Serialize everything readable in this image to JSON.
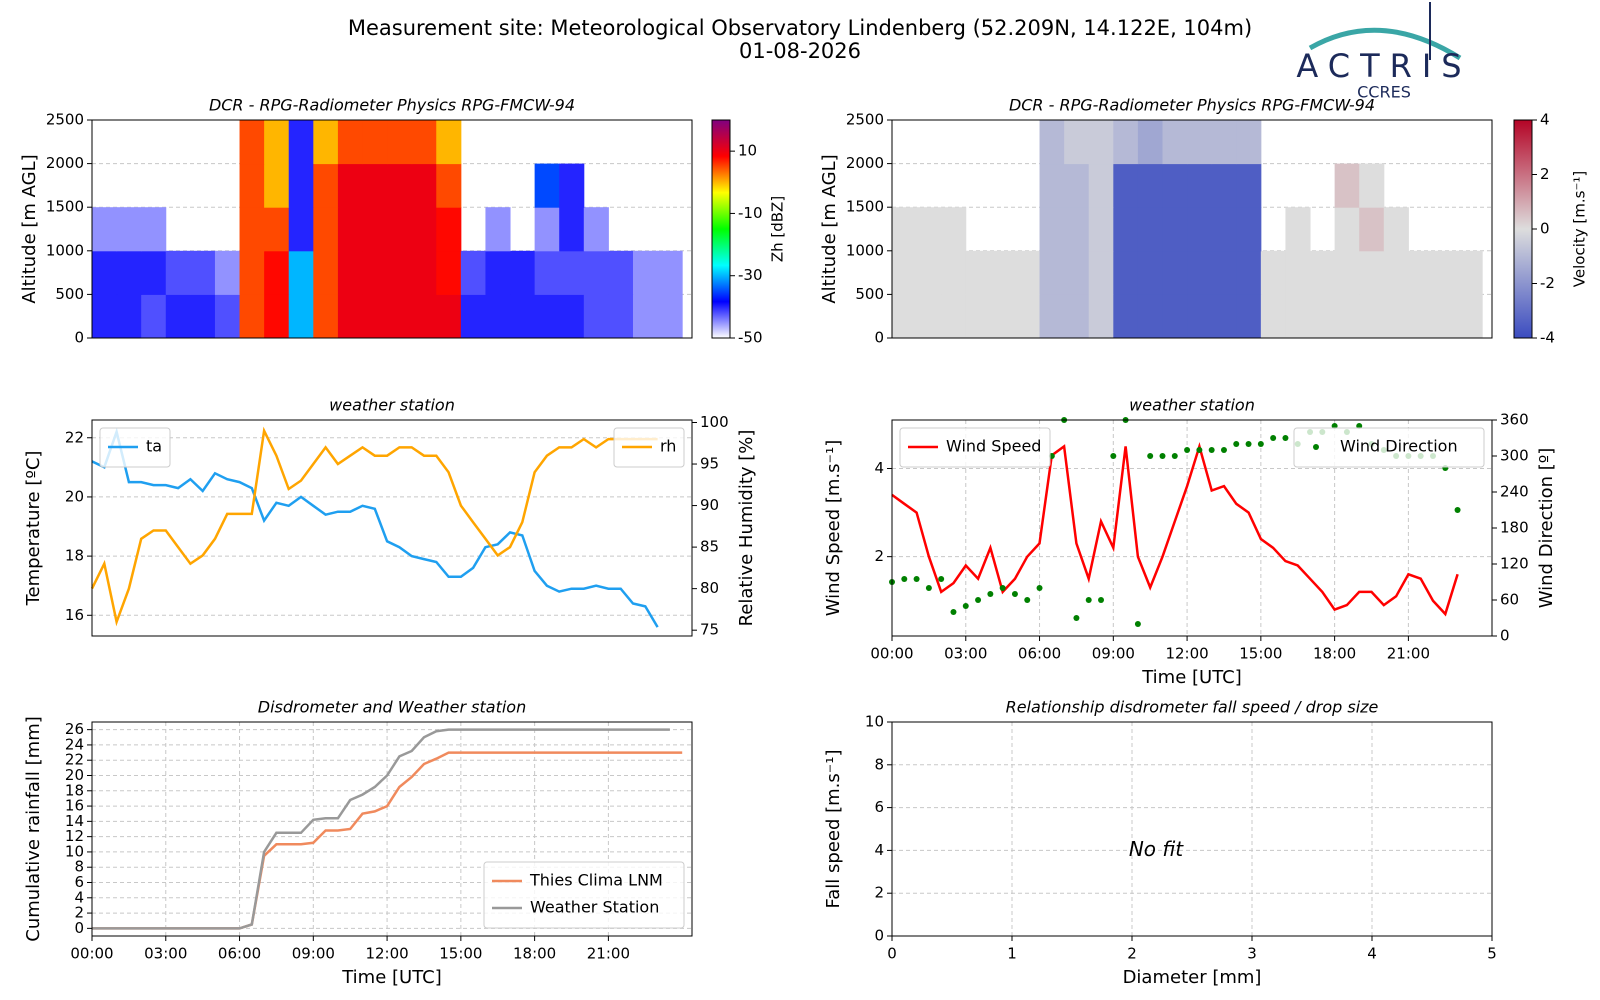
{
  "header": {
    "title": "Measurement site: Meteorological Observatory Lindenberg (52.209N, 14.122E, 104m)",
    "date": "01-08-2026",
    "logo": "ACTRIS",
    "logo_sub": "CCRES"
  },
  "chart_data": [
    {
      "type": "heatmap",
      "title": "DCR - RPG-Radiometer Physics RPG-FMCW-94",
      "ylabel": "Altitude [m AGL]",
      "xlim": [
        0,
        24.4
      ],
      "ylim": [
        0,
        2500
      ],
      "yticks": [
        0,
        500,
        1000,
        1500,
        2000,
        2500
      ],
      "grid": true,
      "x_bins": [
        0,
        1,
        2,
        3,
        4,
        5,
        6,
        7,
        8,
        9,
        10,
        11,
        12,
        13,
        14,
        15,
        16,
        17,
        18,
        19,
        20,
        21,
        22,
        23,
        24
      ],
      "y_bins": [
        0,
        500,
        1000,
        1500,
        2000,
        2500
      ],
      "values": [
        [
          -40,
          -40,
          -42,
          -40,
          -40,
          -42,
          5,
          8,
          -30,
          5,
          10,
          10,
          10,
          10,
          10,
          -40,
          -40,
          -40,
          -40,
          -40,
          -42,
          -42,
          -45,
          -45
        ],
        [
          -40,
          -40,
          -40,
          -42,
          -42,
          -45,
          5,
          8,
          -30,
          5,
          10,
          10,
          10,
          10,
          8,
          -42,
          -40,
          -40,
          -42,
          -42,
          -42,
          -42,
          -45,
          -45
        ],
        [
          -45,
          -45,
          -45,
          null,
          null,
          null,
          5,
          5,
          -40,
          5,
          10,
          10,
          10,
          10,
          8,
          null,
          -45,
          null,
          -45,
          -40,
          -45,
          null,
          null,
          null
        ],
        [
          null,
          null,
          null,
          null,
          null,
          null,
          5,
          0,
          -40,
          5,
          10,
          10,
          10,
          10,
          5,
          null,
          null,
          null,
          -35,
          -40,
          null,
          null,
          null,
          null
        ],
        [
          null,
          null,
          null,
          null,
          null,
          null,
          5,
          0,
          -40,
          0,
          5,
          5,
          5,
          5,
          0,
          null,
          null,
          null,
          null,
          null,
          null,
          null,
          null,
          null
        ]
      ],
      "zlim": [
        -50,
        20
      ],
      "zticks": [
        10,
        -10,
        -30,
        -50
      ],
      "zlabel": "Zh [dBZ]",
      "colorscale": [
        "#ffffff",
        "#0000ff",
        "#00ffff",
        "#00ff00",
        "#ffff00",
        "#ff0000",
        "#800080"
      ]
    },
    {
      "type": "heatmap",
      "title": "DCR - RPG-Radiometer Physics RPG-FMCW-94",
      "ylabel": "Altitude [m AGL]",
      "xlim": [
        0,
        24.4
      ],
      "ylim": [
        0,
        2500
      ],
      "yticks": [
        0,
        500,
        1000,
        1500,
        2000,
        2500
      ],
      "grid": true,
      "x_bins": [
        0,
        1,
        2,
        3,
        4,
        5,
        6,
        7,
        8,
        9,
        10,
        11,
        12,
        13,
        14,
        15,
        16,
        17,
        18,
        19,
        20,
        21,
        22,
        23,
        24
      ],
      "y_bins": [
        0,
        500,
        1000,
        1500,
        2000,
        2500
      ],
      "values": [
        [
          0,
          0,
          0,
          0,
          0,
          0,
          -1,
          -1,
          -0.5,
          -3.5,
          -3.5,
          -3.5,
          -3.5,
          -3.5,
          -3.5,
          0,
          0,
          0,
          0,
          0,
          0,
          0,
          0,
          0
        ],
        [
          0,
          0,
          0,
          0,
          0,
          0,
          -1,
          -1,
          -0.5,
          -3.5,
          -3.5,
          -3.5,
          -3.5,
          -3.5,
          -3.5,
          0,
          0,
          0,
          0,
          0,
          0,
          0,
          0,
          0
        ],
        [
          0,
          0,
          0,
          null,
          null,
          null,
          -1,
          -1,
          -0.5,
          -3.5,
          -3.5,
          -3.5,
          -3.5,
          -3.5,
          -3.5,
          null,
          0,
          null,
          0,
          0.5,
          0,
          null,
          null,
          null
        ],
        [
          null,
          null,
          null,
          null,
          null,
          null,
          -1,
          -1,
          -0.5,
          -3.5,
          -3.5,
          -3.5,
          -3.5,
          -3.5,
          -3.5,
          null,
          null,
          null,
          0.5,
          0,
          null,
          null,
          null,
          null
        ],
        [
          null,
          null,
          null,
          null,
          null,
          null,
          -1,
          -0.5,
          -0.5,
          -1,
          -1.5,
          -1,
          -1,
          -1,
          -1,
          null,
          null,
          null,
          null,
          null,
          null,
          null,
          null,
          null
        ]
      ],
      "zlim": [
        -4,
        4
      ],
      "zticks": [
        4,
        2,
        0,
        -2,
        -4
      ],
      "zlabel": "Velocity [m.s⁻¹]",
      "colorscale": [
        "#3b4cc0",
        "#dddddd",
        "#b40426"
      ]
    },
    {
      "type": "line",
      "title": "weather station",
      "ylabel": "Temperature [ºC]",
      "y2label": "Relative Humidity [%]",
      "xlim": [
        0,
        24.4
      ],
      "ylim": [
        15.3,
        22.6
      ],
      "yticks": [
        16,
        18,
        20,
        22
      ],
      "y2lim": [
        74.3,
        100.3
      ],
      "y2ticks": [
        75,
        80,
        85,
        90,
        95,
        100
      ],
      "grid": true,
      "x": [
        0,
        0.5,
        1,
        1.5,
        2,
        2.5,
        3,
        3.5,
        4,
        4.5,
        5,
        5.5,
        6,
        6.5,
        7,
        7.5,
        8,
        8.5,
        9,
        9.5,
        10,
        10.5,
        11,
        11.5,
        12,
        12.5,
        13,
        13.5,
        14,
        14.5,
        15,
        15.5,
        16,
        16.5,
        17,
        17.5,
        18,
        18.5,
        19,
        19.5,
        20,
        20.5,
        21,
        21.5,
        22,
        22.5,
        23
      ],
      "series": [
        {
          "name": "ta",
          "color": "#1f9ff0",
          "style": "line",
          "legend": "upper left",
          "values": [
            21.2,
            21.0,
            22.2,
            20.5,
            20.5,
            20.4,
            20.4,
            20.3,
            20.6,
            20.2,
            20.8,
            20.6,
            20.5,
            20.3,
            19.2,
            19.8,
            19.7,
            20.0,
            19.7,
            19.4,
            19.5,
            19.5,
            19.7,
            19.6,
            18.5,
            18.3,
            18.0,
            17.9,
            17.8,
            17.3,
            17.3,
            17.6,
            18.3,
            18.4,
            18.8,
            18.7,
            17.5,
            17.0,
            16.8,
            16.9,
            16.9,
            17.0,
            16.9,
            16.9,
            16.4,
            16.3,
            15.6
          ]
        },
        {
          "name": "rh",
          "color": "#ffa500",
          "style": "line",
          "axis": "y2",
          "legend": "upper right",
          "values": [
            80,
            83,
            76,
            80,
            86,
            87,
            87,
            85,
            83,
            84,
            86,
            89,
            89,
            89,
            99,
            96,
            92,
            93,
            95,
            97,
            95,
            96,
            97,
            96,
            96,
            97,
            97,
            96,
            96,
            94,
            90,
            88,
            86,
            84,
            85,
            88,
            94,
            96,
            97,
            97,
            98,
            97,
            98,
            98,
            98,
            98,
            98
          ]
        }
      ]
    },
    {
      "type": "line",
      "title": "weather station",
      "ylabel": "Wind Speed [m.s⁻¹]",
      "y2label": "Wind Direction [º]",
      "xlabel": "Time [UTC]",
      "xlim": [
        0,
        24.4
      ],
      "ylim": [
        0.2,
        5.1
      ],
      "yticks": [
        2,
        4
      ],
      "y2lim": [
        0,
        360
      ],
      "y2ticks": [
        0,
        60,
        120,
        180,
        240,
        300,
        360
      ],
      "grid": true,
      "xticks": [
        {
          "value": 0,
          "label": "00:00"
        },
        {
          "value": 3,
          "label": "03:00"
        },
        {
          "value": 6,
          "label": "06:00"
        },
        {
          "value": 9,
          "label": "09:00"
        },
        {
          "value": 12,
          "label": "12:00"
        },
        {
          "value": 15,
          "label": "15:00"
        },
        {
          "value": 18,
          "label": "18:00"
        },
        {
          "value": 21,
          "label": "21:00"
        }
      ],
      "x": [
        0,
        0.5,
        1,
        1.5,
        2,
        2.5,
        3,
        3.5,
        4,
        4.5,
        5,
        5.5,
        6,
        6.5,
        7,
        7.5,
        8,
        8.5,
        9,
        9.5,
        10,
        10.5,
        11,
        11.5,
        12,
        12.5,
        13,
        13.5,
        14,
        14.5,
        15,
        15.5,
        16,
        16.5,
        17,
        17.5,
        18,
        18.5,
        19,
        19.5,
        20,
        20.5,
        21,
        21.5,
        22,
        22.5,
        23
      ],
      "series": [
        {
          "name": "Wind Speed",
          "color": "#ff0000",
          "style": "line",
          "legend": "upper left",
          "values": [
            3.4,
            3.2,
            3.0,
            2.0,
            1.2,
            1.4,
            1.8,
            1.5,
            2.2,
            1.2,
            1.5,
            2.0,
            2.3,
            4.3,
            4.5,
            2.3,
            1.5,
            2.8,
            2.2,
            4.5,
            2.0,
            1.3,
            2.0,
            2.8,
            3.6,
            4.5,
            3.5,
            3.6,
            3.2,
            3.0,
            2.4,
            2.2,
            1.9,
            1.8,
            1.5,
            1.2,
            0.8,
            0.9,
            1.2,
            1.2,
            0.9,
            1.1,
            1.6,
            1.5,
            1.0,
            0.7,
            1.6
          ]
        },
        {
          "name": "Wind Direction",
          "color": "#008000",
          "style": "points",
          "axis": "y2",
          "legend": "upper right",
          "values": [
            90,
            95,
            95,
            80,
            95,
            40,
            50,
            60,
            70,
            80,
            70,
            60,
            80,
            300,
            360,
            30,
            60,
            60,
            300,
            360,
            20,
            300,
            300,
            300,
            310,
            310,
            310,
            310,
            320,
            320,
            320,
            330,
            330,
            320,
            340,
            340,
            350,
            340,
            350,
            320,
            310,
            300,
            300,
            300,
            300,
            280,
            210
          ]
        }
      ]
    },
    {
      "type": "line",
      "title": "Disdrometer and Weather station",
      "ylabel": "Cumulative rainfall [mm]",
      "xlabel": "Time [UTC]",
      "xlim": [
        0,
        24.4
      ],
      "ylim": [
        -1,
        27
      ],
      "yticks": [
        0,
        2,
        4,
        6,
        8,
        10,
        12,
        14,
        16,
        18,
        20,
        22,
        24,
        26
      ],
      "grid": true,
      "legend": "lower right",
      "xticks": [
        {
          "value": 0,
          "label": "00:00"
        },
        {
          "value": 3,
          "label": "03:00"
        },
        {
          "value": 6,
          "label": "06:00"
        },
        {
          "value": 9,
          "label": "09:00"
        },
        {
          "value": 12,
          "label": "12:00"
        },
        {
          "value": 15,
          "label": "15:00"
        },
        {
          "value": 18,
          "label": "18:00"
        },
        {
          "value": 21,
          "label": "21:00"
        }
      ],
      "x": [
        0,
        0.5,
        1,
        1.5,
        2,
        2.5,
        3,
        3.5,
        4,
        4.5,
        5,
        5.5,
        6,
        6.5,
        7,
        7.5,
        8,
        8.5,
        9,
        9.5,
        10,
        10.5,
        11,
        11.5,
        12,
        12.5,
        13,
        13.5,
        14,
        14.5,
        15,
        15.5,
        16,
        16.5,
        17,
        17.5,
        18,
        18.5,
        19,
        19.5,
        20,
        20.5,
        21,
        21.5,
        22,
        22.5,
        23,
        23.5,
        24
      ],
      "series": [
        {
          "name": "Thies Clima LNM",
          "color": "#f08a5d",
          "style": "line",
          "values": [
            0,
            0,
            0,
            0,
            0,
            0,
            0,
            0,
            0,
            0,
            0,
            0,
            0,
            0.5,
            9.5,
            11,
            11,
            11,
            11.2,
            12.8,
            12.8,
            13,
            15,
            15.3,
            16,
            18.5,
            19.8,
            21.5,
            22.2,
            23,
            23,
            23,
            23,
            23,
            23,
            23,
            23,
            23,
            23,
            23,
            23,
            23,
            23,
            23,
            23,
            23,
            23,
            23,
            23
          ]
        },
        {
          "name": "Weather Station",
          "color": "#999999",
          "style": "line",
          "values": [
            0,
            0,
            0,
            0,
            0,
            0,
            0,
            0,
            0,
            0,
            0,
            0,
            0,
            0.5,
            10,
            12.5,
            12.5,
            12.5,
            14.2,
            14.4,
            14.4,
            16.8,
            17.5,
            18.5,
            20,
            22.5,
            23.2,
            25,
            25.8,
            26,
            26,
            26,
            26,
            26,
            26,
            26,
            26,
            26,
            26,
            26,
            26,
            26,
            26,
            26,
            26,
            26,
            26,
            26,
            null
          ]
        }
      ]
    },
    {
      "type": "scatter",
      "title": "Relationship disdrometer fall speed / drop size",
      "ylabel": "Fall speed [m.s⁻¹]",
      "xlabel": "Diameter [mm]",
      "xlim": [
        0,
        5
      ],
      "ylim": [
        0,
        10
      ],
      "xticks": [
        0,
        1,
        2,
        3,
        4,
        5
      ],
      "yticks": [
        0,
        2,
        4,
        6,
        8,
        10
      ],
      "grid": true,
      "annotation": "No fit",
      "series": []
    }
  ]
}
